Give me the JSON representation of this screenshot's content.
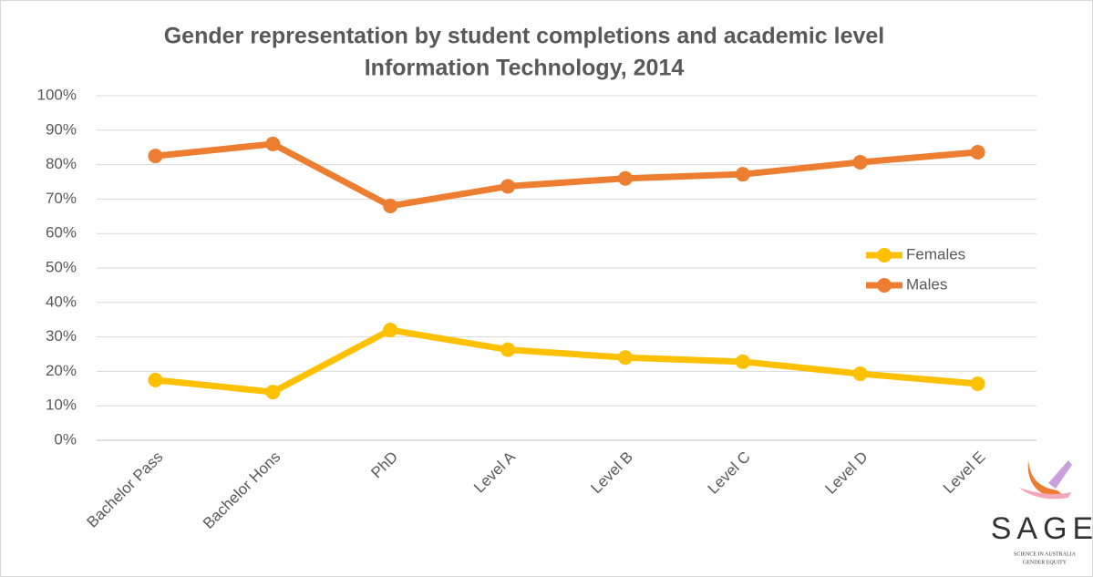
{
  "chart_data": {
    "type": "line",
    "title": "Gender representation by student completions and academic level",
    "subtitle": "Information Technology, 2014",
    "categories": [
      "Bachelor Pass",
      "Bachelor Hons",
      "PhD",
      "Level A",
      "Level B",
      "Level C",
      "Level D",
      "Level E"
    ],
    "series": [
      {
        "name": "Females",
        "color": "#ffc000",
        "values": [
          17.5,
          14,
          32,
          26.3,
          24,
          22.8,
          19.3,
          16.4
        ]
      },
      {
        "name": "Males",
        "color": "#ed7d31",
        "values": [
          82.5,
          86,
          68,
          73.7,
          76,
          77.2,
          80.7,
          83.6
        ]
      }
    ],
    "ylim": [
      0,
      100
    ],
    "yticks": [
      {
        "value": 0,
        "label": "0%"
      },
      {
        "value": 10,
        "label": "10%"
      },
      {
        "value": 20,
        "label": "20%"
      },
      {
        "value": 30,
        "label": "30%"
      },
      {
        "value": 40,
        "label": "40%"
      },
      {
        "value": 50,
        "label": "50%"
      },
      {
        "value": 60,
        "label": "60%"
      },
      {
        "value": 70,
        "label": "70%"
      },
      {
        "value": 80,
        "label": "80%"
      },
      {
        "value": 90,
        "label": "90%"
      },
      {
        "value": 100,
        "label": "100%"
      }
    ],
    "grid": true,
    "legend": "right"
  },
  "logo": {
    "name": "SAGE",
    "line1": "SCIENCE IN AUSTRALIA",
    "line2": "GENDER EQUITY"
  }
}
